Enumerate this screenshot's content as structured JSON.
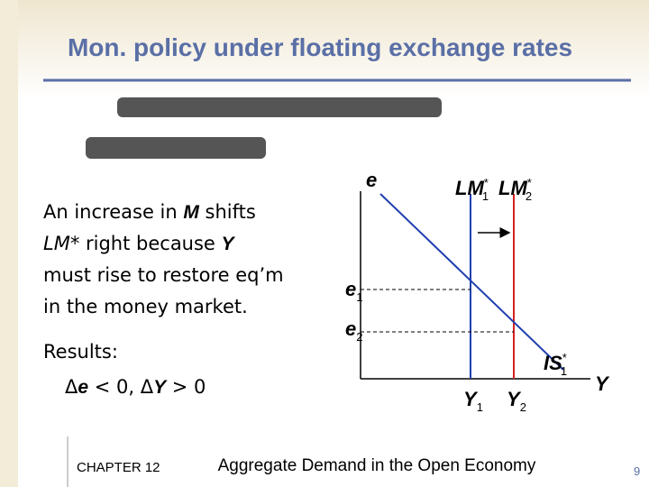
{
  "header": {
    "title": "Mon. policy under floating exchange rates"
  },
  "body": {
    "lines": [
      [
        {
          "t": "An increase in "
        },
        {
          "t": "M",
          "em": true
        },
        {
          "t": " shifts"
        }
      ],
      [
        {
          "t": "LM*",
          "it": true
        },
        {
          "t": " right because "
        },
        {
          "t": "Y",
          "em": true
        }
      ],
      [
        {
          "t": "must rise to restore eq’m"
        }
      ],
      [
        {
          "t": "in the money market."
        }
      ]
    ],
    "results_label": "Results:",
    "results": [
      {
        "t": "Δ"
      },
      {
        "t": "e",
        "em": true
      },
      {
        "t": " < 0,  Δ"
      },
      {
        "t": "Y",
        "em": true
      },
      {
        "t": " > 0"
      }
    ]
  },
  "diagram": {
    "y_axis": "e",
    "x_axis": "Y",
    "lm1": {
      "base": "LM",
      "sup": "*",
      "sub": "1"
    },
    "lm2": {
      "base": "LM",
      "sup": "*",
      "sub": "2"
    },
    "is1": {
      "base": "IS",
      "sup": "*",
      "sub": "1"
    },
    "e1": {
      "base": "e",
      "sub": "1"
    },
    "e2": {
      "base": "e",
      "sub": "2"
    },
    "y1": {
      "base": "Y",
      "sub": "1"
    },
    "y2": {
      "base": "Y",
      "sub": "2"
    }
  },
  "footer": {
    "chapter": "CHAPTER 12",
    "text": "Aggregate Demand in the Open Economy",
    "page": "9"
  }
}
